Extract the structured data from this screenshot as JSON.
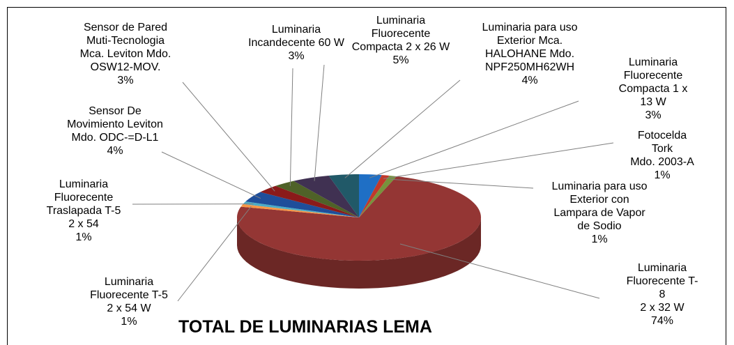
{
  "chart_data": {
    "type": "pie",
    "title": "TOTAL DE LUMINARIAS LEMA",
    "categories": [
      "Luminaria\nFluorecente\nCompacta 1 x 13 W",
      "Fotocelda Tork\nMdo. 2003-A",
      "Luminaria para uso\nExterior con\nLampara de Vapor\nde Sodio",
      "Luminaria\nFluorecente T-8\n2 x 32 W",
      "Luminaria\nFluorecente T-5\n2 x 54 W",
      "Luminaria\nFluorecente\nTraslapada T-5\n2 x 54",
      "Sensor De\nMovimiento Leviton\nMdo. ODC-=D-L1",
      "Sensor de Pared\nMuti-Tecnologia\nMca. Leviton Mdo.\nOSW12-MOV.",
      "Luminaria\nIncandecente 60 W",
      "Luminaria\nFluorecente\nCompacta 2 x 26 W",
      "Luminaria para uso\nExterior Mca.\nHALOHANE Mdo.\nNPF250MH62WH"
    ],
    "values": [
      3,
      1,
      1,
      74,
      1,
      1,
      4,
      3,
      3,
      5,
      4
    ],
    "value_labels": [
      "3%",
      "1%",
      "1%",
      "74%",
      "1%",
      "1%",
      "4%",
      "3%",
      "3%",
      "5%",
      "4%"
    ],
    "colors": [
      "#1f6fc5",
      "#c0392b",
      "#77933c",
      "#943634",
      "#f79646",
      "#4bacc6",
      "#1f4e9a",
      "#8b1a1a",
      "#4f6228",
      "#403152",
      "#215968"
    ]
  }
}
